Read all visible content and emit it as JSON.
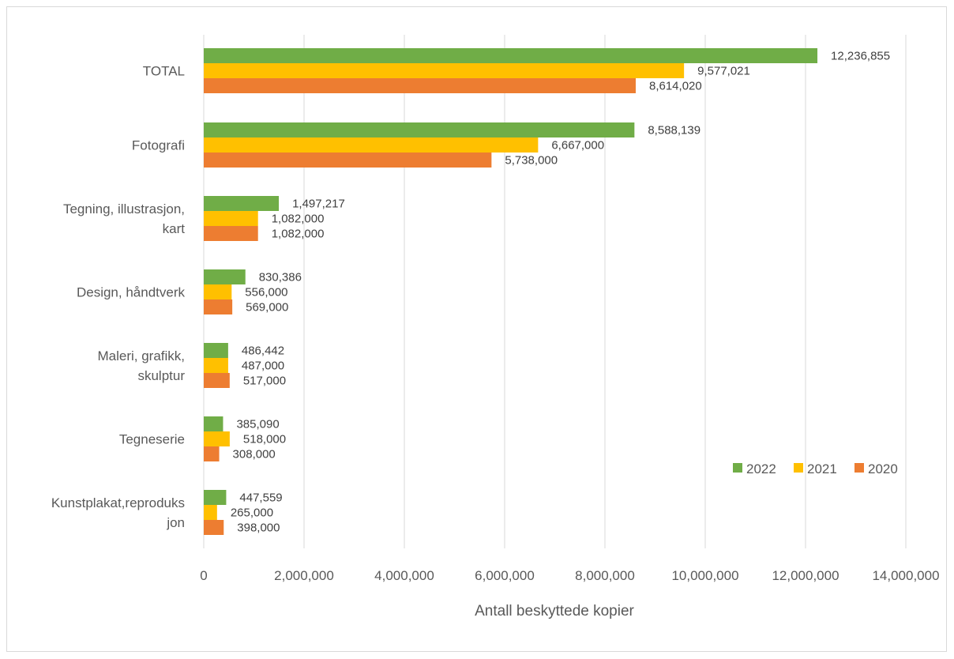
{
  "chart_data": {
    "type": "bar",
    "orientation": "horizontal",
    "categories": [
      [
        "TOTAL"
      ],
      [
        "Fotografi"
      ],
      [
        "Tegning, illustrasjon,",
        "kart"
      ],
      [
        "Design, håndtverk"
      ],
      [
        "Maleri, grafikk,",
        "skulptur"
      ],
      [
        "Tegneserie"
      ],
      [
        "Kunstplakat,reproduks",
        "jon"
      ]
    ],
    "series": [
      {
        "name": "2022",
        "color": "#70AD47",
        "values": [
          12236855,
          8588139,
          1497217,
          830386,
          486442,
          385090,
          447559
        ],
        "labels": [
          "12,236,855",
          "8,588,139",
          "1,497,217",
          "830,386",
          "486,442",
          "385,090",
          "447,559"
        ]
      },
      {
        "name": "2021",
        "color": "#FFC000",
        "values": [
          9577021,
          6667000,
          1082000,
          556000,
          487000,
          518000,
          265000
        ],
        "labels": [
          "9,577,021",
          "6,667,000",
          "1,082,000",
          "556,000",
          "487,000",
          "518,000",
          "265,000"
        ]
      },
      {
        "name": "2020",
        "color": "#ED7D31",
        "values": [
          8614020,
          5738000,
          1082000,
          569000,
          517000,
          308000,
          398000
        ],
        "labels": [
          "8,614,020",
          "5,738,000",
          "1,082,000",
          "569,000",
          "517,000",
          "308,000",
          "398,000"
        ]
      }
    ],
    "xticks": [
      0,
      2000000,
      4000000,
      6000000,
      8000000,
      10000000,
      12000000,
      14000000
    ],
    "xtick_labels": [
      "0",
      "2,000,000",
      "4,000,000",
      "6,000,000",
      "8,000,000",
      "10,000,000",
      "12,000,000",
      "14,000,000"
    ],
    "xlim": [
      0,
      14000000
    ],
    "xlabel": "Antall beskyttede kopier",
    "ylabel": "",
    "title": "",
    "grid": true,
    "legend": {
      "placement": "right",
      "order": [
        "2022",
        "2021",
        "2020"
      ]
    }
  }
}
